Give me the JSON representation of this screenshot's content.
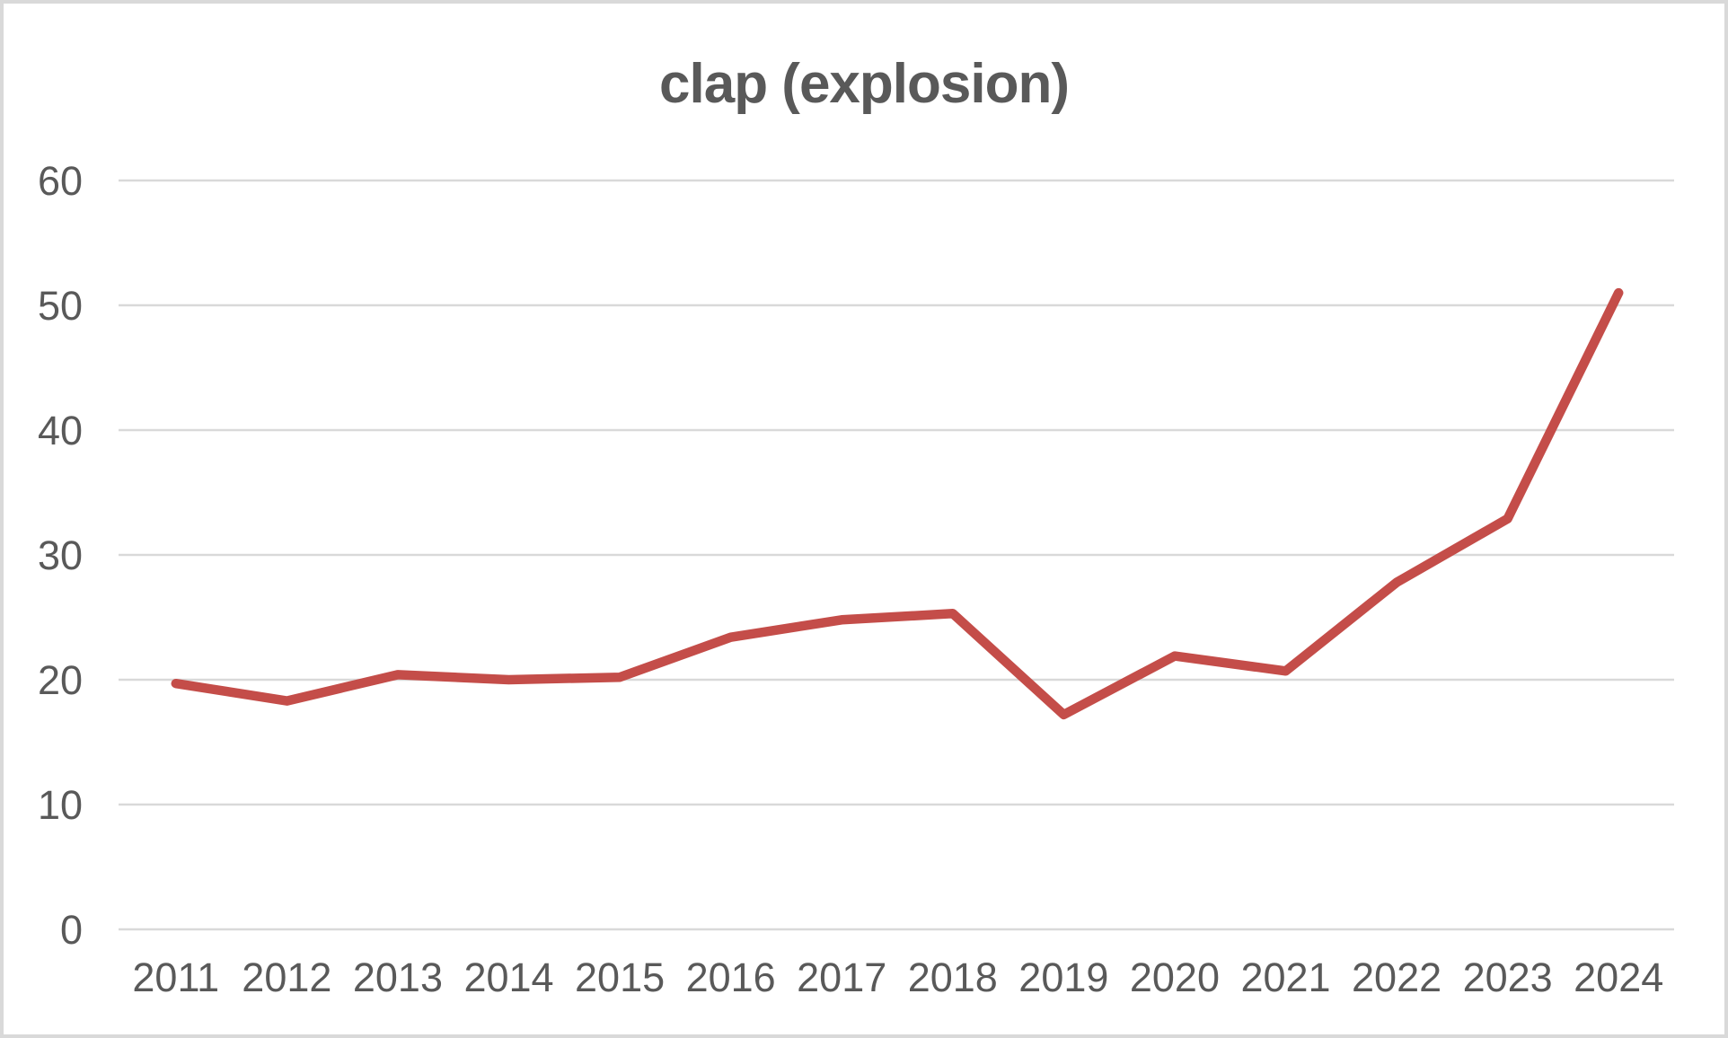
{
  "chart_data": {
    "type": "line",
    "title": "clap (explosion)",
    "categories": [
      "2011",
      "2012",
      "2013",
      "2014",
      "2015",
      "2016",
      "2017",
      "2018",
      "2019",
      "2020",
      "2021",
      "2022",
      "2023",
      "2024"
    ],
    "series": [
      {
        "name": "clap (explosion)",
        "values": [
          19.7,
          18.3,
          20.4,
          20.0,
          20.2,
          23.4,
          24.8,
          25.3,
          17.2,
          21.9,
          20.7,
          27.8,
          32.9,
          51.0
        ]
      }
    ],
    "xlabel": "",
    "ylabel": "",
    "ylim": [
      0,
      60
    ],
    "y_ticks": [
      0,
      10,
      20,
      30,
      40,
      50,
      60
    ],
    "grid": "horizontal-only",
    "legend": "none",
    "line_color": "#C44D49",
    "tick_label_color": "#595959",
    "title_color": "#595959",
    "gridline_color": "#D9D9D9",
    "background_color": "#FFFFFF",
    "border_color": "#D9D9D9"
  }
}
